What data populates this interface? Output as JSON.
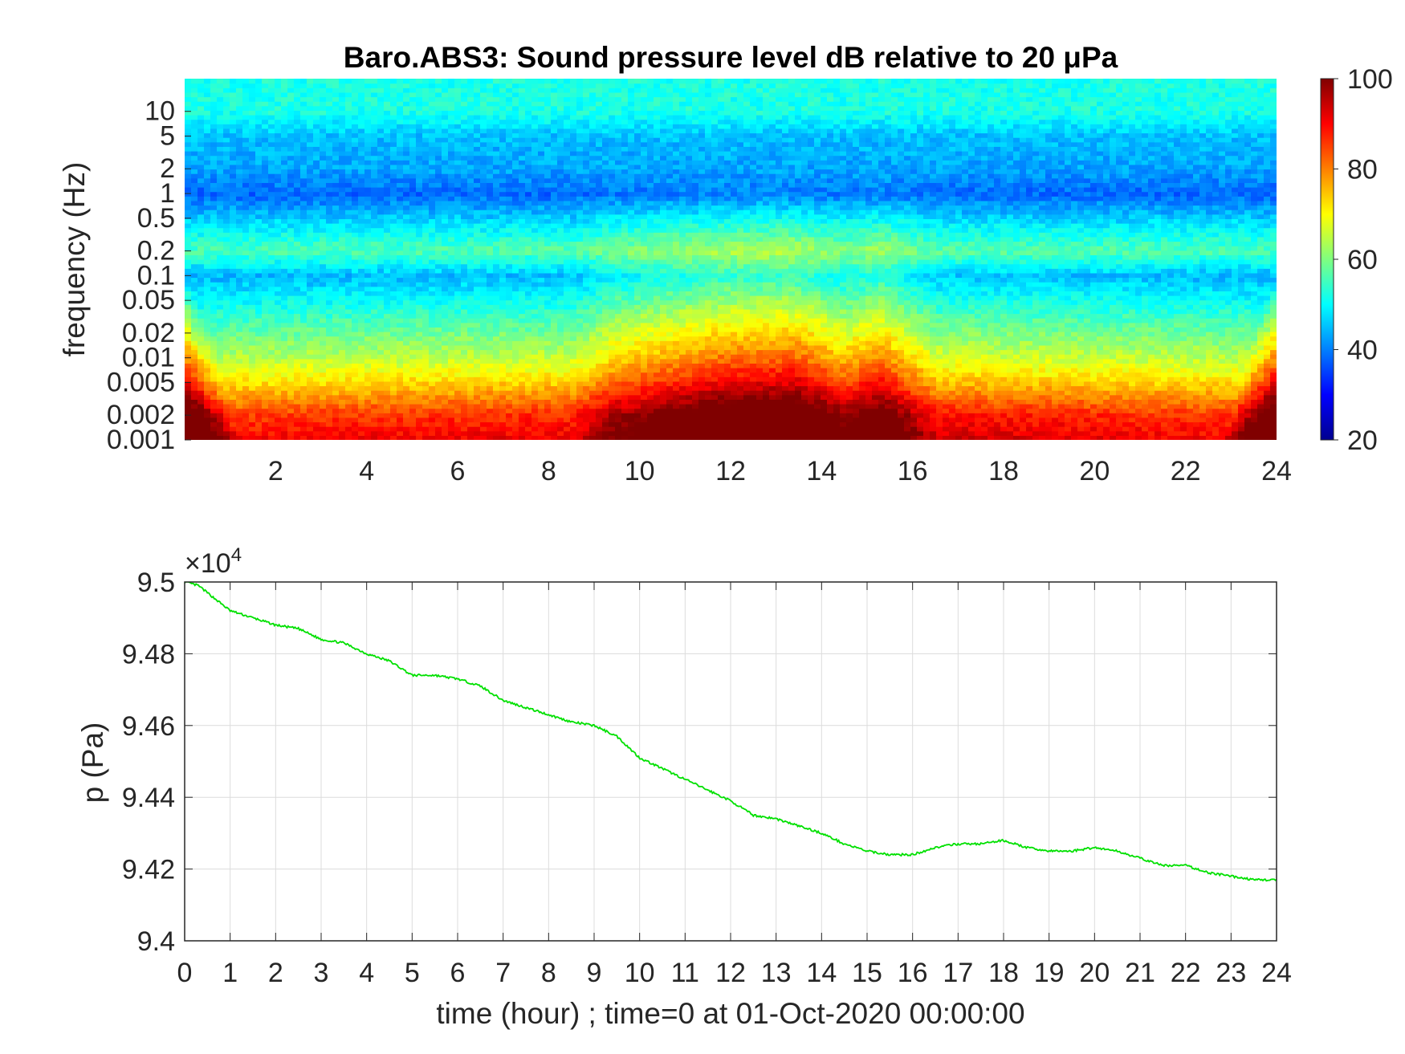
{
  "chart_data": [
    {
      "type": "heatmap",
      "title": "Baro.ABS3: Sound pressure level dB relative to 20 μPa",
      "ylabel": "frequency (Hz)",
      "xlabel": "",
      "yscale": "log",
      "xlim": [
        0,
        24
      ],
      "ylim": [
        0.001,
        25
      ],
      "x_ticks": [
        "2",
        "4",
        "6",
        "8",
        "10",
        "12",
        "14",
        "16",
        "18",
        "20",
        "22",
        "24"
      ],
      "x_tick_values": [
        2,
        4,
        6,
        8,
        10,
        12,
        14,
        16,
        18,
        20,
        22,
        24
      ],
      "y_ticks": [
        "0.001",
        "0.002",
        "0.005",
        "0.01",
        "0.02",
        "0.05",
        "0.1",
        "0.2",
        "0.5",
        "1",
        "2",
        "5",
        "10"
      ],
      "y_tick_values": [
        0.001,
        0.002,
        0.005,
        0.01,
        0.02,
        0.05,
        0.1,
        0.2,
        0.5,
        1,
        2,
        5,
        10
      ],
      "colorbar": {
        "colormap": "jet",
        "range": [
          20,
          100
        ],
        "ticks": [
          "20",
          "40",
          "60",
          "80",
          "100"
        ],
        "tick_values": [
          20,
          40,
          60,
          80,
          100
        ]
      },
      "band_levels_db": [
        {
          "freq_hz": 0.001,
          "db": 90
        },
        {
          "freq_hz": 0.002,
          "db": 85
        },
        {
          "freq_hz": 0.005,
          "db": 72
        },
        {
          "freq_hz": 0.01,
          "db": 64
        },
        {
          "freq_hz": 0.02,
          "db": 58
        },
        {
          "freq_hz": 0.05,
          "db": 50
        },
        {
          "freq_hz": 0.1,
          "db": 44
        },
        {
          "freq_hz": 0.2,
          "db": 56
        },
        {
          "freq_hz": 0.5,
          "db": 46
        },
        {
          "freq_hz": 1,
          "db": 38
        },
        {
          "freq_hz": 2,
          "db": 43
        },
        {
          "freq_hz": 5,
          "db": 45
        },
        {
          "freq_hz": 10,
          "db": 52
        }
      ],
      "daytime_boost_db": [
        {
          "hour": 0,
          "db": 0
        },
        {
          "hour": 8.5,
          "db": 2
        },
        {
          "hour": 9.5,
          "db": 12
        },
        {
          "hour": 11.8,
          "db": 22
        },
        {
          "hour": 13.4,
          "db": 24
        },
        {
          "hour": 14.5,
          "db": 14
        },
        {
          "hour": 15.3,
          "db": 20
        },
        {
          "hour": 16.5,
          "db": 4
        },
        {
          "hour": 24,
          "db": 0
        }
      ]
    },
    {
      "type": "line",
      "ylabel": "p (Pa)",
      "xlabel": "time (hour) ; time=0 at 01-Oct-2020 00:00:00",
      "exponent_label": "×10",
      "exponent_power": "4",
      "xlim": [
        0,
        24
      ],
      "ylim": [
        9.4,
        9.5
      ],
      "grid": true,
      "x_ticks": [
        "0",
        "1",
        "2",
        "3",
        "4",
        "5",
        "6",
        "7",
        "8",
        "9",
        "10",
        "11",
        "12",
        "13",
        "14",
        "15",
        "16",
        "17",
        "18",
        "19",
        "20",
        "21",
        "22",
        "23",
        "24"
      ],
      "x_tick_values": [
        0,
        1,
        2,
        3,
        4,
        5,
        6,
        7,
        8,
        9,
        10,
        11,
        12,
        13,
        14,
        15,
        16,
        17,
        18,
        19,
        20,
        21,
        22,
        23,
        24
      ],
      "y_ticks": [
        "9.4",
        "9.42",
        "9.44",
        "9.46",
        "9.48",
        "9.5"
      ],
      "y_tick_values": [
        9.4,
        9.42,
        9.44,
        9.46,
        9.48,
        9.5
      ],
      "color": "#00e000",
      "series": [
        {
          "x": [
            0,
            0.3,
            0.6,
            1,
            1.5,
            2,
            2.5,
            3,
            3.5,
            4,
            4.5,
            5,
            5.5,
            6,
            6.5,
            7,
            7.5,
            8,
            8.5,
            9,
            9.5,
            10,
            10.5,
            11,
            11.5,
            12,
            12.5,
            13,
            13.5,
            14,
            14.5,
            15,
            15.5,
            16,
            16.5,
            17,
            17.5,
            18,
            18.5,
            19,
            19.5,
            20,
            20.5,
            21,
            21.5,
            22,
            22.5,
            23,
            23.5,
            24
          ],
          "y": [
            9.5,
            9.499,
            9.496,
            9.492,
            9.49,
            9.488,
            9.487,
            9.484,
            9.483,
            9.48,
            9.478,
            9.474,
            9.474,
            9.473,
            9.471,
            9.467,
            9.465,
            9.463,
            9.461,
            9.46,
            9.457,
            9.451,
            9.448,
            9.445,
            9.442,
            9.439,
            9.435,
            9.434,
            9.432,
            9.43,
            9.427,
            9.425,
            9.424,
            9.424,
            9.426,
            9.427,
            9.427,
            9.428,
            9.426,
            9.425,
            9.425,
            9.426,
            9.425,
            9.423,
            9.421,
            9.421,
            9.419,
            9.418,
            9.417,
            9.417
          ]
        }
      ]
    }
  ]
}
